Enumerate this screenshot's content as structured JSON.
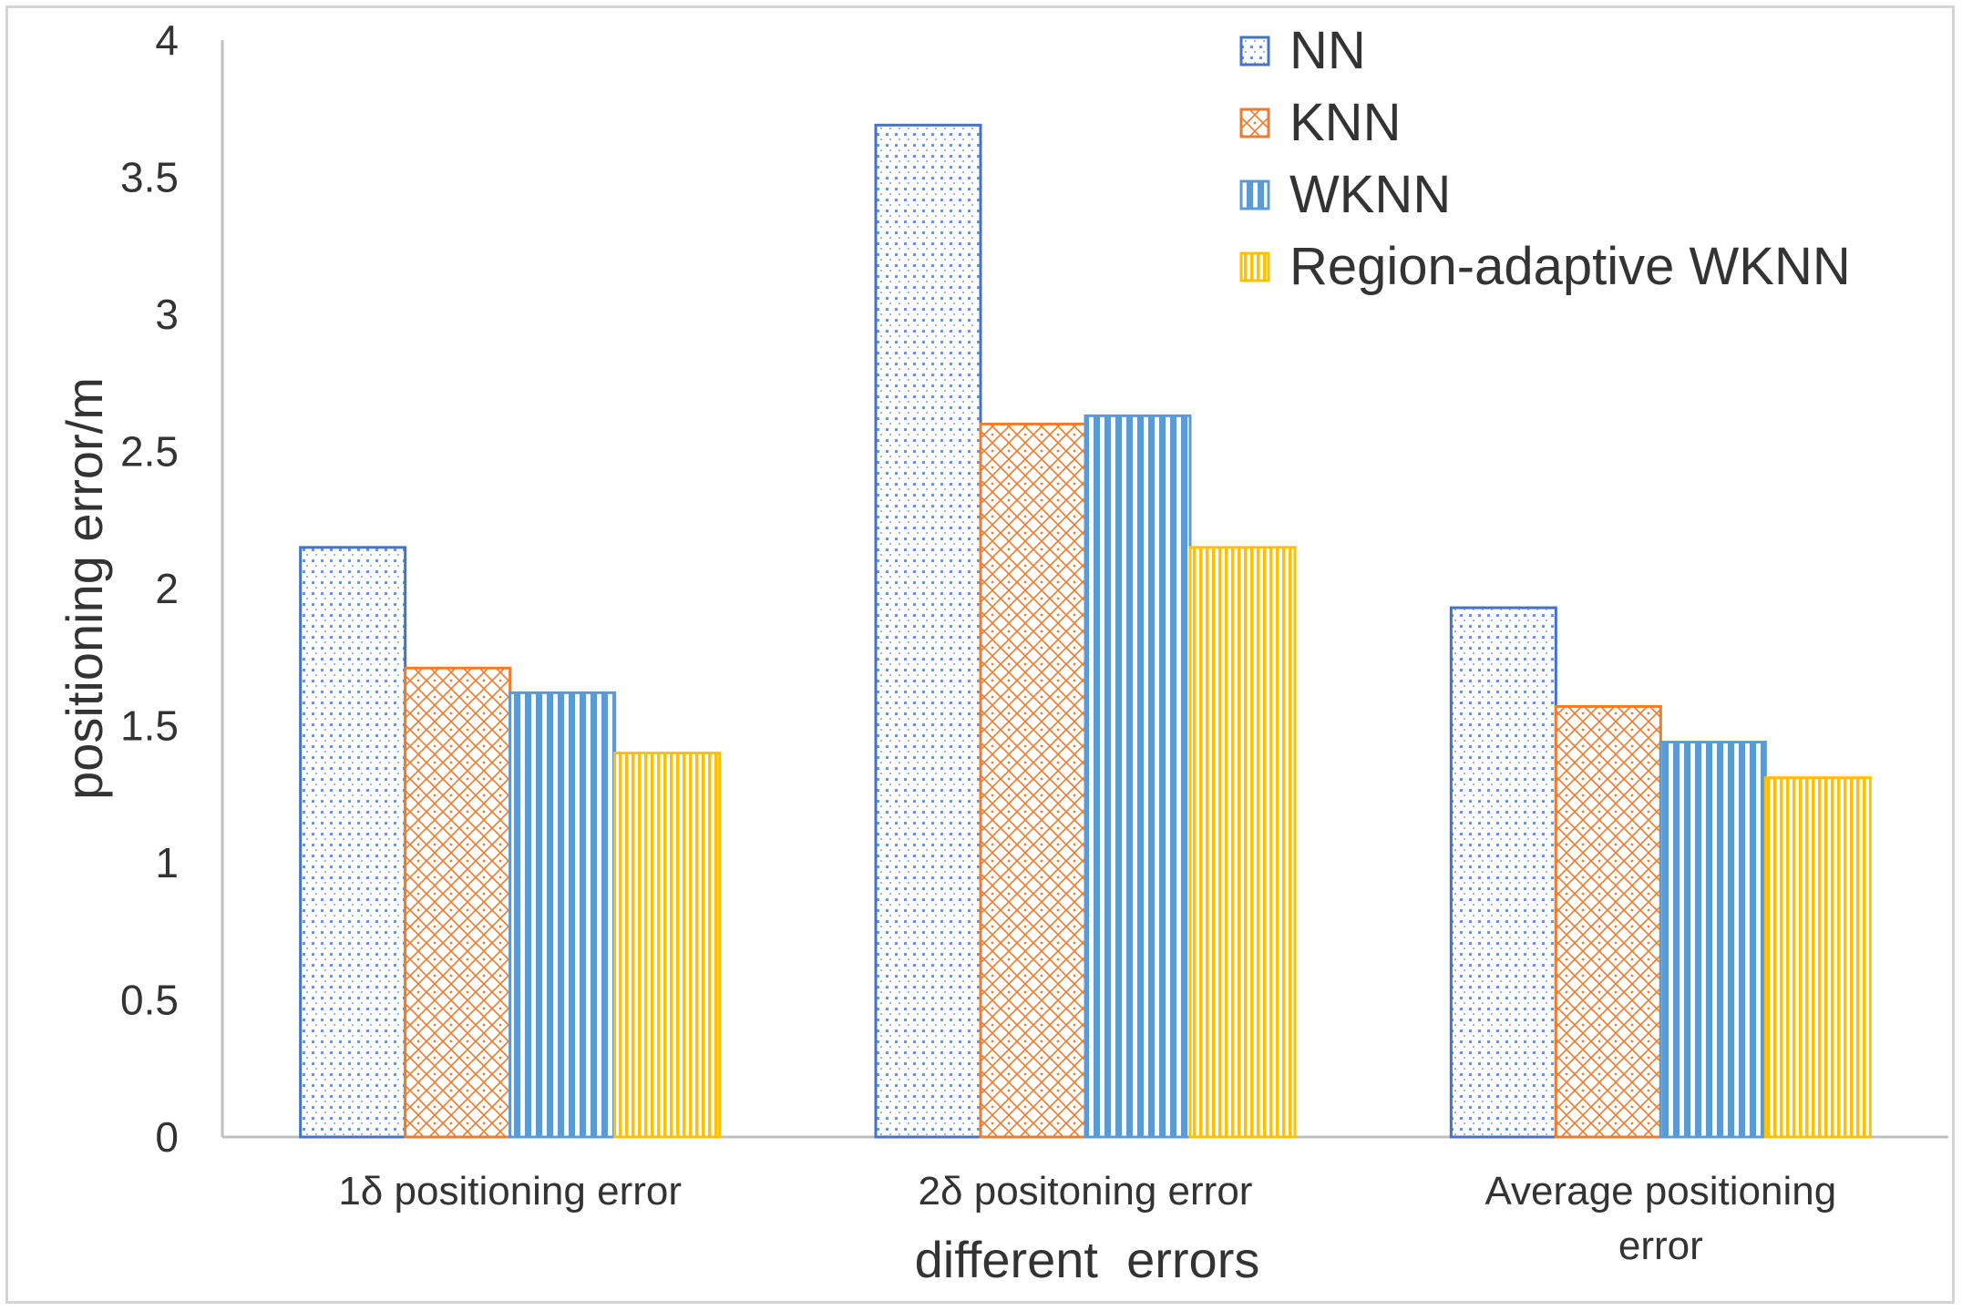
{
  "chart_data": {
    "type": "bar",
    "title": "",
    "xlabel": "different  errors",
    "ylabel": "positioning error/m",
    "ylim": [
      0,
      4
    ],
    "yticks": [
      "0",
      "0.5",
      "1",
      "1.5",
      "2",
      "2.5",
      "3",
      "3.5",
      "4"
    ],
    "grid": false,
    "legend_position": "top-right",
    "categories": [
      [
        "1δ positioning error"
      ],
      [
        "2δ positoning error"
      ],
      [
        "Average positioning",
        "error"
      ]
    ],
    "series": [
      {
        "name": "NN",
        "values": [
          2.15,
          3.69,
          1.93
        ],
        "color": "#4472C4",
        "pattern": "dots"
      },
      {
        "name": "KNN",
        "values": [
          1.71,
          2.6,
          1.57
        ],
        "color": "#ED7D31",
        "pattern": "diamond-grid"
      },
      {
        "name": "WKNN",
        "values": [
          1.62,
          2.63,
          1.44
        ],
        "color": "#5B9BD5",
        "pattern": "wide-vertical-stripes"
      },
      {
        "name": "Region-adaptive WKNN",
        "values": [
          1.4,
          2.15,
          1.31
        ],
        "color": "#FFC000",
        "pattern": "narrow-vertical-stripes"
      }
    ]
  }
}
